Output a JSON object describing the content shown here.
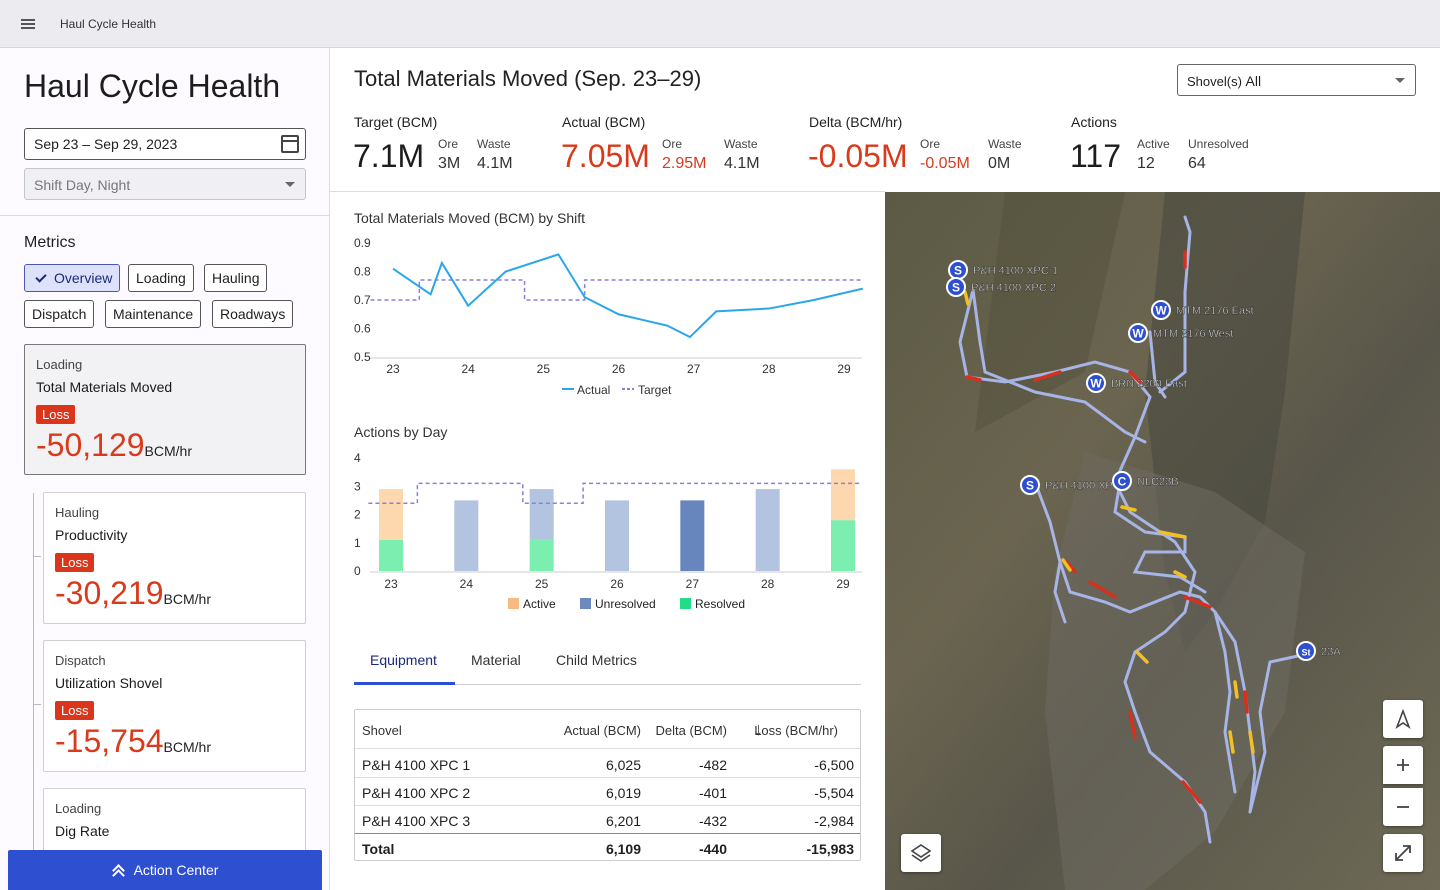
{
  "app": {
    "title": "Haul Cycle Health"
  },
  "left": {
    "title": "Haul Cycle Health",
    "date_range": "Sep 23 – Sep 29, 2023",
    "shift_placeholder": "Shift Day, Night",
    "metrics_heading": "Metrics",
    "chips": [
      "Overview",
      "Loading",
      "Hauling",
      "Dispatch",
      "Maintenance",
      "Roadways"
    ],
    "cards": [
      {
        "category": "Loading",
        "name": "Total Materials Moved",
        "badge": "Loss",
        "value": "-50,129",
        "unit": "BCM/hr"
      },
      {
        "category": "Hauling",
        "name": "Productivity",
        "badge": "Loss",
        "value": "-30,219",
        "unit": "BCM/hr"
      },
      {
        "category": "Dispatch",
        "name": "Utilization Shovel",
        "badge": "Loss",
        "value": "-15,754",
        "unit": "BCM/hr"
      },
      {
        "category": "Loading",
        "name": "Dig Rate"
      }
    ],
    "action_center": "Action Center"
  },
  "main": {
    "title": "Total Materials Moved (Sep. 23–29)",
    "shovel_label": "Shovel(s)",
    "shovel_value": "All",
    "kpis": [
      {
        "label": "Target (BCM)",
        "value": "7.1M",
        "ore_label": "Ore",
        "ore": "3M",
        "waste_label": "Waste",
        "waste": "4.1M"
      },
      {
        "label": "Actual (BCM)",
        "value": "7.05M",
        "ore_label": "Ore",
        "ore": "2.95M",
        "waste_label": "Waste",
        "waste": "4.1M"
      },
      {
        "label": "Delta (BCM/hr)",
        "value": "-0.05M",
        "ore_label": "Ore",
        "ore": "-0.05M",
        "waste_label": "Waste",
        "waste": "0M"
      },
      {
        "label": "Actions",
        "value": "117",
        "ore_label": "Active",
        "ore": "12",
        "waste_label": "Unresolved",
        "waste": "64"
      }
    ],
    "tabs": [
      "Equipment",
      "Material",
      "Child Metrics"
    ],
    "table": {
      "headers": [
        "Shovel",
        "Actual (BCM)",
        "Delta (BCM)",
        "Loss (BCM/hr)"
      ],
      "rows": [
        [
          "P&H 4100 XPC 1",
          "6,025",
          "-482",
          "-6,500"
        ],
        [
          "P&H 4100 XPC 2",
          "6,019",
          "-401",
          "-5,504"
        ],
        [
          "P&H 4100 XPC 3",
          "6,201",
          "-432",
          "-2,984"
        ]
      ],
      "total": [
        "Total",
        "6,109",
        "-440",
        "-15,983"
      ]
    }
  },
  "chart_data": [
    {
      "type": "line",
      "title": "Total Materials Moved (BCM) by Shift",
      "categories": [
        "23",
        "24",
        "25",
        "26",
        "27",
        "28",
        "29"
      ],
      "yticks": [
        "0.9",
        "0.8",
        "0.7",
        "0.6",
        "0.5"
      ],
      "ylim": [
        0.5,
        0.9
      ],
      "actual_x": [
        23,
        23.5,
        23.65,
        24,
        24.5,
        25.2,
        25.55,
        26,
        26.65,
        26.95,
        27.3,
        28,
        28.6,
        29.25
      ],
      "actual_y": [
        0.81,
        0.72,
        0.83,
        0.68,
        0.8,
        0.86,
        0.71,
        0.65,
        0.61,
        0.57,
        0.66,
        0.67,
        0.7,
        0.74
      ],
      "target_x": [
        22.7,
        23.35,
        23.35,
        24.75,
        24.75,
        25.55,
        25.55,
        29.25
      ],
      "target_y": [
        0.7,
        0.7,
        0.77,
        0.77,
        0.7,
        0.7,
        0.77,
        0.77
      ],
      "legend": [
        "Actual",
        "Target"
      ],
      "colors": {
        "actual": "#29a6ec",
        "target": "#8b7fd6"
      }
    },
    {
      "type": "bar",
      "title": "Actions by Day",
      "categories": [
        "23",
        "24",
        "25",
        "26",
        "27",
        "28",
        "29"
      ],
      "yticks": [
        "4",
        "3",
        "2",
        "1",
        "0"
      ],
      "ylim": [
        0,
        4
      ],
      "series": [
        {
          "name": "Resolved",
          "values": [
            1.1,
            0,
            1.1,
            0,
            0,
            0,
            1.8
          ],
          "color": "#7ceeb0"
        },
        {
          "name": "Unresolved",
          "values": [
            0,
            2.5,
            1.8,
            2.5,
            2.5,
            2.9,
            0
          ],
          "color": "#b3c4e0"
        },
        {
          "name": "Active",
          "values": [
            1.8,
            0,
            0,
            0,
            0,
            0,
            1.8
          ],
          "color": "#fdd7ad"
        }
      ],
      "highlight": {
        "index": 4,
        "color": "#6686bd"
      },
      "target_x": [
        22.7,
        23.35,
        23.35,
        24.75,
        24.75,
        25.55,
        25.55,
        29.25
      ],
      "target_y": [
        2.4,
        2.4,
        3.1,
        3.1,
        2.4,
        2.4,
        3.1,
        3.1
      ],
      "legend": [
        {
          "name": "Active",
          "color": "#f9b982"
        },
        {
          "name": "Unresolved",
          "color": "#6d89c0"
        },
        {
          "name": "Resolved",
          "color": "#23dc86"
        }
      ]
    }
  ],
  "map": {
    "markers": [
      {
        "letter": "S",
        "label": "P&H 4100 XPC 1"
      },
      {
        "letter": "S",
        "label": "P&H 4100 XPC 2"
      },
      {
        "letter": "W",
        "label": "MTM 2176 East"
      },
      {
        "letter": "W",
        "label": "MTM 2176 West"
      },
      {
        "letter": "W",
        "label": "BRN 2200 East"
      },
      {
        "letter": "S",
        "label": "P&H 4100 XP"
      },
      {
        "letter": "C",
        "label": "NLC23B"
      },
      {
        "letter": "St",
        "label": "23A"
      }
    ]
  }
}
